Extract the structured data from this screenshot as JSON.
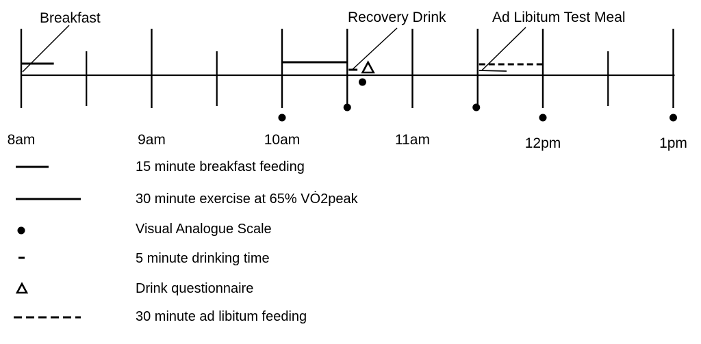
{
  "timeline": {
    "tick_labels": [
      {
        "label": "8am",
        "time": "08:00"
      },
      {
        "label": "9am",
        "time": "09:00"
      },
      {
        "label": "10am",
        "time": "10:00"
      },
      {
        "label": "11am",
        "time": "11:00"
      },
      {
        "label": "12pm",
        "time": "12:00"
      },
      {
        "label": "1pm",
        "time": "13:00"
      }
    ],
    "major_tick_times": [
      "08:00",
      "09:00",
      "10:00",
      "10:30",
      "11:00",
      "11:30",
      "12:00",
      "13:00"
    ],
    "minor_tick_times": [
      "08:30",
      "09:30",
      "12:30"
    ],
    "events": [
      {
        "label": "Breakfast",
        "start": "08:00",
        "end": "08:15",
        "style": "breakfast"
      },
      {
        "label": "",
        "start": "10:00",
        "end": "10:30",
        "style": "exercise"
      },
      {
        "label": "Recovery Drink",
        "start": "10:30",
        "end": "10:35",
        "style": "drink"
      },
      {
        "label": "Ad Libitum Test Meal",
        "start": "11:30",
        "end": "12:00",
        "style": "adlib"
      }
    ],
    "vas_times": [
      "10:00",
      "10:30",
      "10:37",
      "11:30",
      "12:00",
      "13:00"
    ],
    "questionnaire_times": [
      "10:38"
    ]
  },
  "legend": {
    "items": [
      {
        "symbol": "short-line",
        "label": "15 minute breakfast feeding"
      },
      {
        "symbol": "long-line",
        "label": "30 minute exercise at 65% VȮ2peak"
      },
      {
        "symbol": "dot",
        "label": "Visual Analogue Scale"
      },
      {
        "symbol": "dash",
        "label": "5 minute drinking time"
      },
      {
        "symbol": "triangle",
        "label": "Drink questionnaire"
      },
      {
        "symbol": "dashed-line",
        "label": "30 minute ad libitum feeding"
      }
    ]
  }
}
